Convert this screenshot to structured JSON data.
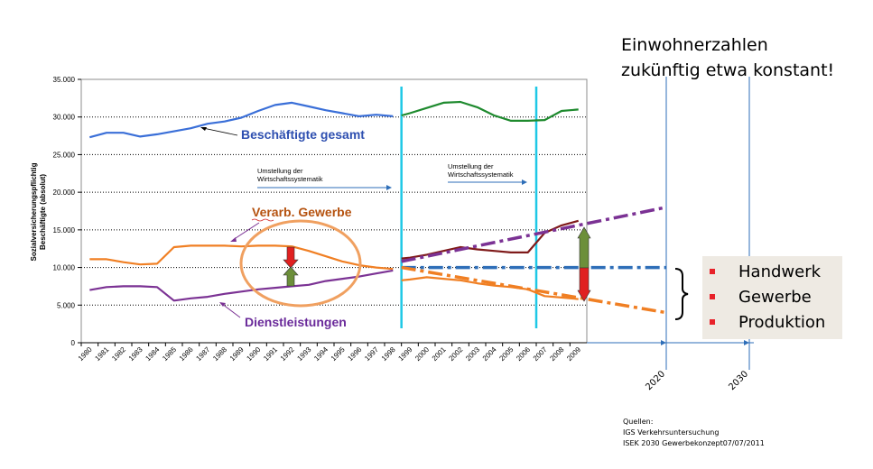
{
  "chart_data": {
    "type": "line",
    "ylabel": [
      "Sozialversicherungspflichtig",
      "Beschäftigte (absolut)"
    ],
    "ylim": [
      0,
      35000
    ],
    "y_ticks": [
      "0",
      "5.000",
      "10.000",
      "15.000",
      "20.000",
      "25.000",
      "30.000",
      "35.000"
    ],
    "y_tick_values": [
      0,
      5000,
      10000,
      15000,
      20000,
      25000,
      30000,
      35000
    ],
    "grid": "horizontal dotted",
    "x_ticks": [
      "1980",
      "1981",
      "1982",
      "1983",
      "1984",
      "1985",
      "1986",
      "1987",
      "1988",
      "1989",
      "1990",
      "1991",
      "1992",
      "1993",
      "1994",
      "1995",
      "1996",
      "1997",
      "1998",
      "1999",
      "2000",
      "2001",
      "2002",
      "2003",
      "2004",
      "2005",
      "2006",
      "2007",
      "2008",
      "2009"
    ],
    "extension_ticks": [
      "2020",
      "2030"
    ],
    "breaks": [
      {
        "year": 1998.5,
        "label": [
          "Umstellung der",
          "Wirtschaftssystematik"
        ]
      },
      {
        "year": 2006.5,
        "label": [
          "Umstellung der",
          "Wirtschaftssystematik"
        ]
      }
    ],
    "series": [
      {
        "name": "Beschäftigte gesamt",
        "color": "#3a6fd8",
        "x": [
          1980,
          1981,
          1982,
          1983,
          1984,
          1985,
          1986,
          1987,
          1988,
          1989,
          1990,
          1991,
          1992,
          1993,
          1994,
          1995,
          1996,
          1997,
          1998
        ],
        "values": [
          27300,
          27900,
          27900,
          27400,
          27700,
          28100,
          28500,
          29100,
          29400,
          29900,
          30800,
          31600,
          31900,
          31400,
          30900,
          30500,
          30100,
          30300,
          30100
        ]
      },
      {
        "name": "",
        "color": "#1e8a2e",
        "x": [
          1998.5,
          1999,
          2000,
          2001,
          2002,
          2003,
          2004,
          2005,
          2006,
          2007,
          2008,
          2009
        ],
        "values": [
          30200,
          30500,
          31200,
          31900,
          32000,
          31300,
          30200,
          29500,
          29500,
          29600,
          30800,
          31000
        ]
      },
      {
        "name": "Verarb. Gewerbe",
        "color": "#f07f23",
        "x": [
          1980,
          1981,
          1982,
          1983,
          1984,
          1985,
          1986,
          1987,
          1988,
          1989,
          1990,
          1991,
          1992,
          1993,
          1994,
          1995,
          1996,
          1997,
          1998
        ],
        "values": [
          11100,
          11100,
          10700,
          10400,
          10500,
          12700,
          12900,
          12900,
          12900,
          12800,
          12900,
          12900,
          12800,
          12200,
          11500,
          10800,
          10300,
          10000,
          9800
        ]
      },
      {
        "name": "",
        "color": "#f07f23",
        "x": [
          1998.5,
          1999,
          2000,
          2001,
          2002,
          2003,
          2004,
          2005,
          2006,
          2007,
          2008,
          2009
        ],
        "values": [
          8300,
          8400,
          8700,
          8500,
          8300,
          7900,
          7600,
          7400,
          7100,
          6200,
          6000,
          5800
        ]
      },
      {
        "name": "Dienstleistungen",
        "color": "#7b3294",
        "x": [
          1980,
          1981,
          1982,
          1983,
          1984,
          1985,
          1986,
          1987,
          1988,
          1989,
          1990,
          1991,
          1992,
          1993,
          1994,
          1995,
          1996,
          1997,
          1998
        ],
        "values": [
          7000,
          7400,
          7500,
          7500,
          7400,
          5600,
          5900,
          6100,
          6500,
          6800,
          7100,
          7300,
          7500,
          7700,
          8200,
          8500,
          8800,
          9200,
          9600
        ]
      },
      {
        "name": "",
        "color": "#7f1a1a",
        "x": [
          1998.5,
          1999,
          2000,
          2001,
          2002,
          2003,
          2004,
          2005,
          2006,
          2007,
          2008,
          2009
        ],
        "values": [
          11200,
          11300,
          11700,
          12200,
          12700,
          12400,
          12200,
          12000,
          12000,
          14600,
          15600,
          16200
        ]
      }
    ],
    "projections": [
      {
        "color": "#7b3294",
        "x": [
          1998.5,
          2020
        ],
        "values": [
          10800,
          18000
        ]
      },
      {
        "color": "#2e6eb8",
        "x": [
          1998.5,
          2020
        ],
        "values": [
          10000,
          10000
        ]
      },
      {
        "color": "#f07f23",
        "x": [
          1998.5,
          2020
        ],
        "values": [
          10000,
          4000
        ]
      }
    ],
    "annotations": {
      "gesamt": "Beschäftigte gesamt",
      "gewerbe": "Verarb. Gewerbe",
      "dienst": "Dienstleistungen"
    },
    "arrow_colors": {
      "up": "#6c8f3a",
      "down": "#e02020"
    }
  },
  "headline": [
    "Einwohnerzahlen",
    "zukünftig etwa konstant!"
  ],
  "legend": {
    "items": [
      {
        "label": "Handwerk"
      },
      {
        "label": "Gewerbe"
      },
      {
        "label": "Produktion"
      }
    ]
  },
  "sources": {
    "title": "Quellen:",
    "lines": [
      "IGS Verkehrsuntersuchung",
      "ISEK 2030 Gewerbekonzept07/07/2011"
    ]
  }
}
